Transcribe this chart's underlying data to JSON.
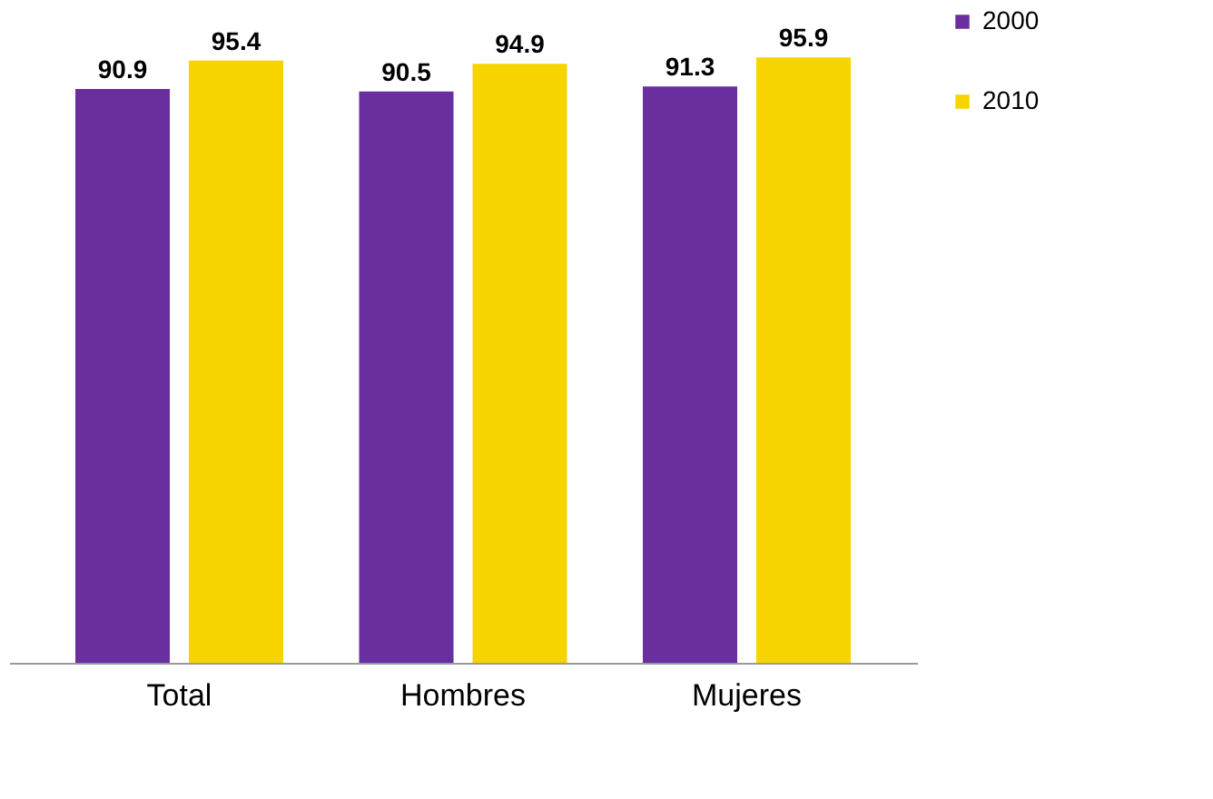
{
  "chart_data": {
    "type": "bar",
    "categories": [
      "Total",
      "Hombres",
      "Mujeres"
    ],
    "series": [
      {
        "name": "2000",
        "color": "#6a2f9e",
        "values": [
          90.9,
          90.5,
          91.3
        ]
      },
      {
        "name": "2010",
        "color": "#f7d300",
        "values": [
          95.4,
          94.9,
          95.9
        ]
      }
    ],
    "data_labels": true,
    "legend": "right",
    "grid": false,
    "tick_labels": "x"
  }
}
